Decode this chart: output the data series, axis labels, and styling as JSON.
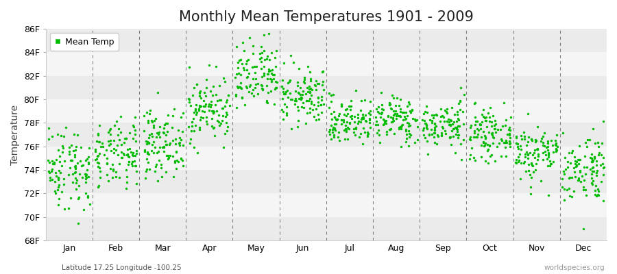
{
  "title": "Monthly Mean Temperatures 1901 - 2009",
  "ylabel": "Temperature",
  "xlabel_labels": [
    "Jan",
    "Feb",
    "Mar",
    "Apr",
    "May",
    "Jun",
    "Jul",
    "Aug",
    "Sep",
    "Oct",
    "Nov",
    "Dec"
  ],
  "ytick_labels": [
    "68F",
    "70F",
    "72F",
    "74F",
    "76F",
    "78F",
    "80F",
    "82F",
    "84F",
    "86F"
  ],
  "ytick_values": [
    68,
    70,
    72,
    74,
    76,
    78,
    80,
    82,
    84,
    86
  ],
  "ylim": [
    68,
    86
  ],
  "dot_color": "#00BB00",
  "bg_color": "#ffffff",
  "plot_bg_color": "#ffffff",
  "band_color_light": "#ebebeb",
  "band_color_mid": "#f5f5f5",
  "dashed_line_color": "#666666",
  "legend_label": "Mean Temp",
  "bottom_left_text": "Latitude 17.25 Longitude -100.25",
  "bottom_right_text": "worldspecies.org",
  "title_fontsize": 15,
  "axis_fontsize": 9,
  "legend_fontsize": 9,
  "dot_size": 6,
  "num_years": 109,
  "seed": 42,
  "monthly_means": [
    74.2,
    75.2,
    76.3,
    79.2,
    81.8,
    80.2,
    78.2,
    78.3,
    77.8,
    77.0,
    75.5,
    74.2
  ],
  "monthly_stds": [
    1.8,
    1.4,
    1.4,
    1.4,
    1.5,
    1.2,
    1.0,
    1.0,
    1.0,
    1.0,
    1.2,
    1.5
  ],
  "xlim": [
    0,
    12
  ]
}
